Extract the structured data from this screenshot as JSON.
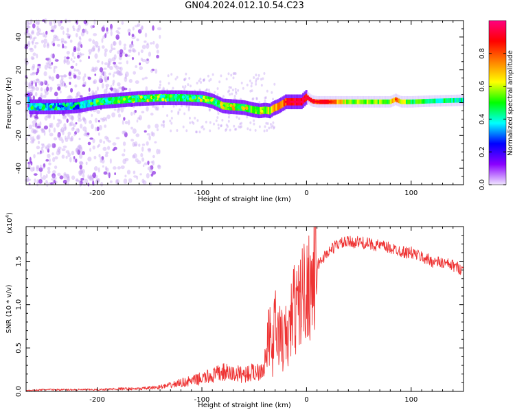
{
  "page": {
    "title": "GN04.2024.012.10.54.C23"
  },
  "chart_data": [
    {
      "type": "heatmap",
      "title": "GN04.2024.012.10.54.C23",
      "xlabel": "Height of straight line (km)",
      "ylabel": "Frequency (Hz)",
      "xlim": [
        -268,
        150
      ],
      "ylim": [
        -50,
        50
      ],
      "xticks": [
        -200,
        -100,
        0,
        100
      ],
      "xtick_labels": [
        "-200",
        "-100",
        "0",
        "100"
      ],
      "yticks": [
        -40,
        -20,
        0,
        20,
        40
      ],
      "ytick_labels": [
        "-40",
        "-20",
        "0",
        "20",
        "40"
      ],
      "colorbar": {
        "label": "Normalized spectral amplitude",
        "range": [
          0.0,
          1.0
        ],
        "ticks": [
          0.0,
          0.2,
          0.4,
          0.6,
          0.8
        ],
        "tick_labels": [
          "0.0",
          "0.2",
          "0.4",
          "0.6",
          "0.8"
        ],
        "colormap": [
          "#f0e6ff",
          "#8a00ff",
          "#0000ff",
          "#00ffff",
          "#00ff00",
          "#ffff00",
          "#ff8000",
          "#ff0000",
          "#ff0080"
        ]
      },
      "ridge": {
        "x": [
          -265,
          -240,
          -220,
          -200,
          -180,
          -160,
          -140,
          -120,
          -100,
          -90,
          -80,
          -70,
          -60,
          -50,
          -45,
          -40,
          -35,
          -32,
          -28,
          -25,
          -20,
          -15,
          -10,
          -5,
          0,
          5,
          10,
          20,
          40,
          60,
          80,
          85,
          90,
          100,
          120,
          150
        ],
        "freq": [
          -2.5,
          -2.5,
          -2,
          0.5,
          1.5,
          2.5,
          3,
          3,
          2.5,
          1,
          -2,
          -2.5,
          -3,
          -4.5,
          -5,
          -4.5,
          -5,
          -3.5,
          -2.5,
          -1.5,
          0.5,
          0.5,
          0.5,
          0.5,
          3.5,
          1,
          0.5,
          0.5,
          0.5,
          0.5,
          0.5,
          2,
          0.5,
          0.5,
          1,
          1.5
        ],
        "amplitude": [
          0.35,
          0.35,
          0.3,
          0.4,
          0.45,
          0.45,
          0.45,
          0.45,
          0.45,
          0.45,
          0.5,
          0.55,
          0.5,
          0.5,
          0.55,
          0.55,
          0.6,
          0.7,
          0.7,
          0.75,
          0.85,
          0.9,
          0.9,
          0.9,
          0.9,
          0.85,
          0.85,
          0.85,
          0.55,
          0.55,
          0.55,
          0.8,
          0.6,
          0.5,
          0.45,
          0.4
        ]
      },
      "background_scatter_x_range": [
        -268,
        -140
      ]
    },
    {
      "type": "line",
      "xlabel": "Height of straight line (km)",
      "ylabel": "SNR (10 * v/v)",
      "yscale_label": "(x10",
      "yscale_exp": "4",
      "yscale_close": ")",
      "xlim": [
        -268,
        150
      ],
      "ylim": [
        0,
        1.9
      ],
      "xticks": [
        -200,
        -100,
        0,
        100
      ],
      "xtick_labels": [
        "-200",
        "-100",
        "0",
        "100"
      ],
      "yticks": [
        0.0,
        0.5,
        1.0,
        1.5
      ],
      "ytick_labels": [
        "0.0",
        "0.5",
        "1.0",
        "1.5"
      ],
      "series": [
        {
          "color": "#ee3333",
          "x": [
            -268,
            -250,
            -230,
            -200,
            -180,
            -160,
            -140,
            -130,
            -120,
            -110,
            -100,
            -90,
            -80,
            -70,
            -60,
            -50,
            -45,
            -40,
            -38,
            -35,
            -33,
            -30,
            -28,
            -25,
            -22,
            -20,
            -18,
            -15,
            -12,
            -10,
            -5,
            0,
            5,
            10,
            20,
            30,
            40,
            50,
            60,
            70,
            80,
            90,
            95,
            100,
            110,
            120,
            130,
            140,
            150
          ],
          "y": [
            0.01,
            0.02,
            0.02,
            0.02,
            0.03,
            0.03,
            0.05,
            0.07,
            0.1,
            0.12,
            0.15,
            0.18,
            0.22,
            0.2,
            0.2,
            0.22,
            0.25,
            0.3,
            0.45,
            0.7,
            0.4,
            0.8,
            0.6,
            0.7,
            0.5,
            0.65,
            0.55,
            0.8,
            1.0,
            0.9,
            1.1,
            1.2,
            1.25,
            1.45,
            1.6,
            1.7,
            1.72,
            1.72,
            1.7,
            1.68,
            1.65,
            1.62,
            1.6,
            1.6,
            1.55,
            1.5,
            1.48,
            1.45,
            1.4
          ]
        }
      ]
    }
  ]
}
